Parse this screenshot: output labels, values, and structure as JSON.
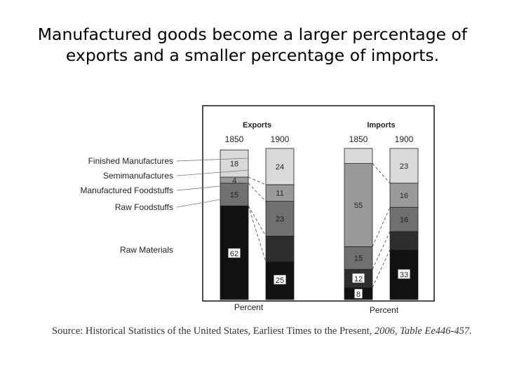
{
  "slide": {
    "title": "Manufactured goods become a larger percentage of exports and a smaller percentage of imports."
  },
  "source": {
    "prefix": "Source: Historical Statistics of the United States, Earliest Times to the Present, ",
    "suffix": "2006, Table Ee446-457."
  },
  "chart_data": {
    "type": "bar",
    "stacked": true,
    "groups": [
      {
        "label": "Exports",
        "x_label": "Percent",
        "categories": [
          "1850",
          "1900"
        ]
      },
      {
        "label": "Imports",
        "x_label": "Percent",
        "categories": [
          "1850",
          "1900"
        ]
      }
    ],
    "categories": [
      "1850",
      "1900",
      "1850",
      "1900"
    ],
    "series": [
      {
        "name": "Raw Materials",
        "values": [
          62,
          25,
          8,
          33
        ],
        "color": "#111111"
      },
      {
        "name": "Raw Foodstuffs",
        "values": [
          0,
          17,
          12,
          12
        ],
        "color": "#2e2e2e"
      },
      {
        "name": "Manufactured Foodstuffs",
        "values": [
          15,
          23,
          15,
          16
        ],
        "color": "#707070"
      },
      {
        "name": "Semimanufactures",
        "values": [
          4,
          11,
          55,
          16
        ],
        "color": "#9a9a9a"
      },
      {
        "name": "Finished Manufactures",
        "values": [
          18,
          24,
          10,
          23
        ],
        "color": "#d9d9d9"
      }
    ],
    "data_labels": [
      [
        "62",
        "",
        "15",
        "4",
        "18"
      ],
      [
        "25",
        "",
        "23",
        "11",
        "24"
      ],
      [
        "8",
        "12",
        "15",
        "55",
        ""
      ],
      [
        "33",
        "",
        "16",
        "16",
        "23"
      ]
    ],
    "legend": [
      "Finished Manufactures",
      "Semimanufactures",
      "Manufactured Foodstuffs",
      "Raw Foodstuffs",
      "Raw Materials"
    ],
    "ylim": [
      0,
      100
    ],
    "grid": false,
    "legend_position": "left"
  }
}
